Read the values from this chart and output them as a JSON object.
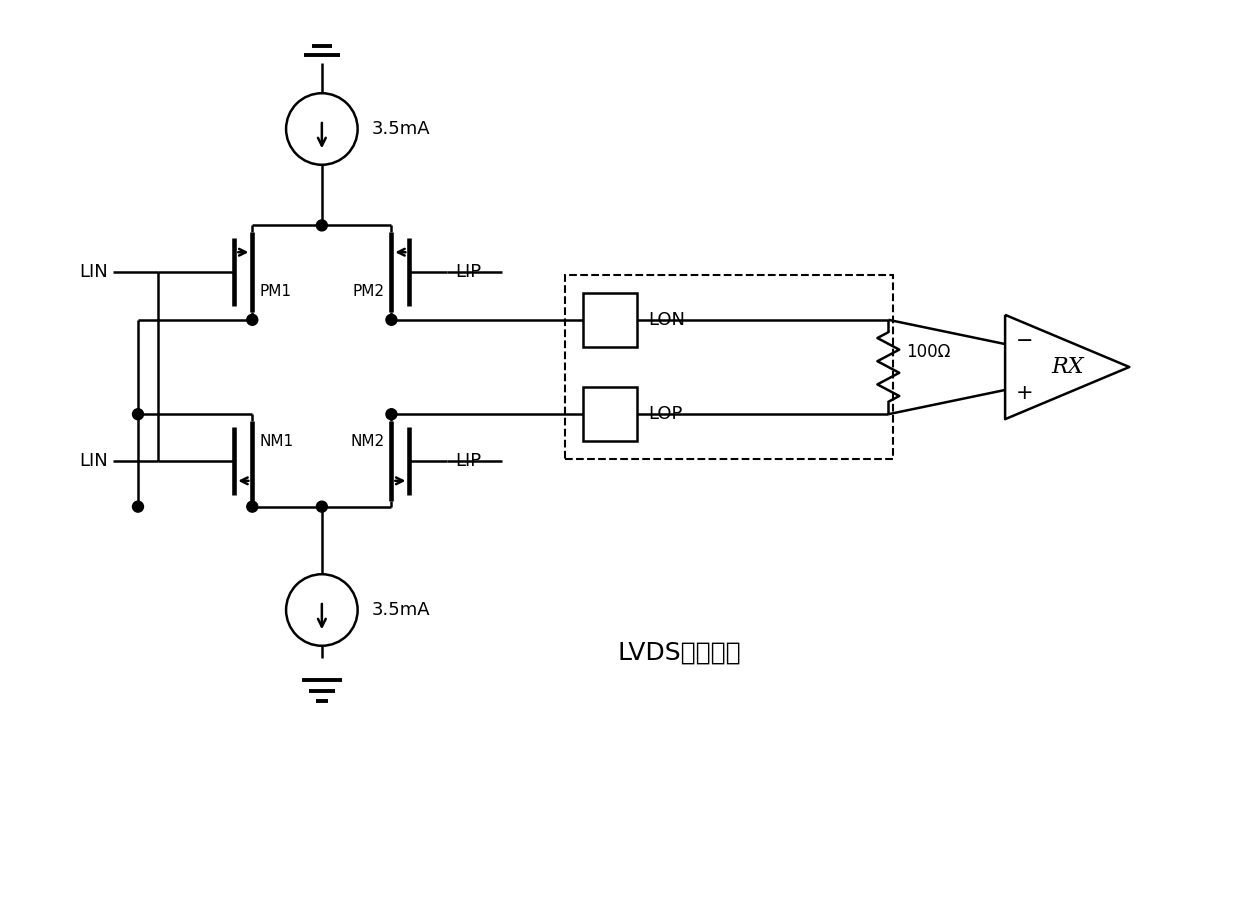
{
  "title": "LVDS驱动电路",
  "current_source_label": "3.5mA",
  "lon_label": "LON",
  "lop_label": "LOP",
  "rx_label": "RX",
  "resistor_label": "100Ω",
  "pm1_label": "PM1",
  "pm2_label": "PM2",
  "nm1_label": "NM1",
  "nm2_label": "NM2",
  "lin_label": "LIN",
  "lip_label": "LIP",
  "bg_color": "#ffffff",
  "line_color": "#000000",
  "line_width": 1.8,
  "font_size": 13
}
